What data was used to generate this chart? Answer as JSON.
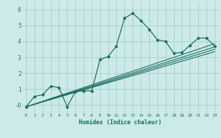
{
  "xlabel": "Humidex (Indice chaleur)",
  "bg_color": "#cceaea",
  "grid_color": "#aacccc",
  "line_color": "#1a6e60",
  "xlim": [
    -0.5,
    23.5
  ],
  "ylim": [
    -0.5,
    6.5
  ],
  "yticks": [
    0,
    1,
    2,
    3,
    4,
    5,
    6
  ],
  "ytick_labels": [
    "-0",
    "1",
    "2",
    "3",
    "4",
    "5",
    "6"
  ],
  "xticks": [
    0,
    1,
    2,
    3,
    4,
    5,
    6,
    7,
    8,
    9,
    10,
    11,
    12,
    13,
    14,
    15,
    16,
    17,
    18,
    19,
    20,
    21,
    22,
    23
  ],
  "main_x": [
    0,
    1,
    2,
    3,
    4,
    5,
    6,
    7,
    8,
    9,
    10,
    11,
    12,
    13,
    14,
    15,
    16,
    17,
    18,
    19,
    20,
    21,
    22,
    23
  ],
  "main_y": [
    -0.1,
    0.55,
    0.65,
    1.2,
    1.1,
    -0.1,
    0.85,
    0.9,
    0.9,
    2.85,
    3.05,
    3.7,
    5.45,
    5.75,
    5.3,
    4.75,
    4.1,
    4.0,
    3.25,
    3.3,
    3.75,
    4.2,
    4.2,
    3.7
  ],
  "trend_lines": [
    {
      "x": [
        0,
        23
      ],
      "y": [
        -0.1,
        3.85
      ]
    },
    {
      "x": [
        0,
        23
      ],
      "y": [
        -0.1,
        3.65
      ]
    },
    {
      "x": [
        0,
        23
      ],
      "y": [
        -0.1,
        3.5
      ]
    },
    {
      "x": [
        0,
        23
      ],
      "y": [
        -0.1,
        3.35
      ]
    }
  ]
}
